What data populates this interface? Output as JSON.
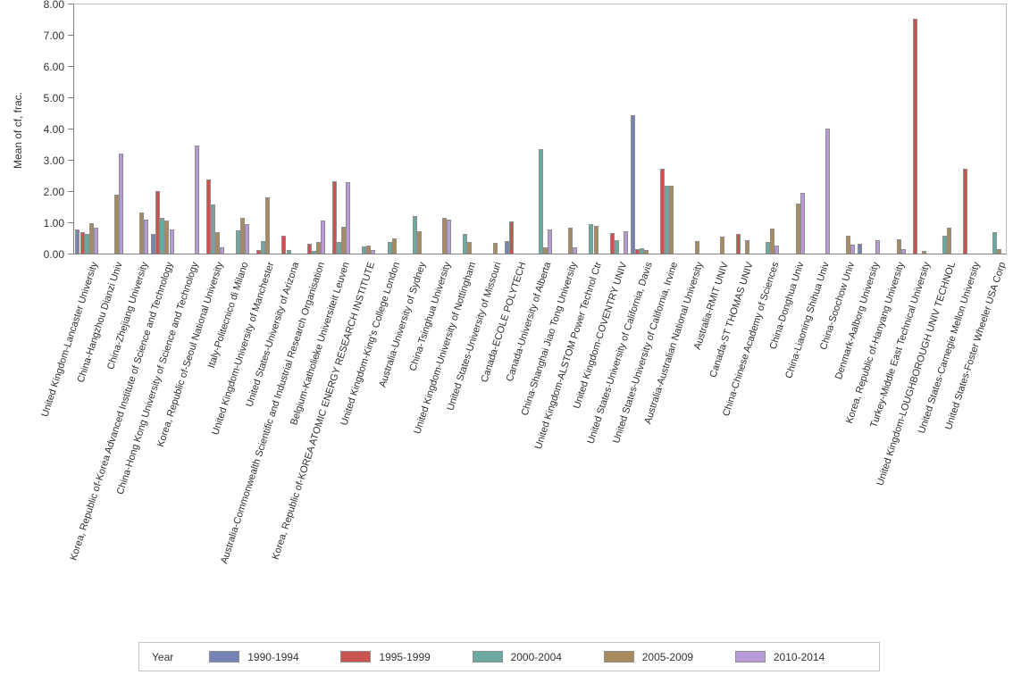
{
  "chart_data": {
    "type": "bar",
    "title": "",
    "ylabel": "Mean of cf, frac.",
    "xlabel": "",
    "ylim": [
      0,
      8
    ],
    "ytick_labels": [
      "0.00",
      "1.00",
      "2.00",
      "3.00",
      "4.00",
      "5.00",
      "6.00",
      "7.00",
      "8.00"
    ],
    "grid": false,
    "legend_position": "bottom",
    "legend_title": "Year",
    "categories": [
      "United Kingdom-Lancaster University",
      "China-Hangzhou Dianzi Univ",
      "China-Zhejiang University",
      "Korea, Republic of-Korea Advanced Institute of Science and Technology",
      "China-Hong Kong University of Science and Technology",
      "Korea, Republic of-Seoul National University",
      "Italy-Politecnico di Milano",
      "United Kingdom-University of Manchester",
      "United States-University of Arizona",
      "Australia-Commonwealth Scientific and Industrial Research Organisation",
      "Belgium-Katholieke Universiteit Leuven",
      "Korea, Republic of-KOREA ATOMIC ENERGY RESEARCH INSTITUTE",
      "United Kingdom-King's College London",
      "Australia-University of Sydney",
      "China-Tsinghua University",
      "United Kingdom-University of Nottingham",
      "United States-University of Missouri",
      "Canada-ECOLE POLYTECH",
      "Canada-University of Alberta",
      "China-Shanghai Jiao Tong University",
      "United Kingdom-ALSTOM Power Technol Ctr",
      "United Kingdom-COVENTRY UNIV",
      "United States-University of California, Davis",
      "United States-University of California, Irvine",
      "Australia-Australian National University",
      "Australia-RMIT UNIV",
      "Canada-ST THOMAS UNIV",
      "China-Chinese Academy of Sciences",
      "China-Donghua Univ",
      "China-Liaoning Shihua Univ",
      "China-Soochow Univ",
      "Denmark-Aalborg University",
      "Korea, Republic of-Hanyang University",
      "Turkey-Middle East Technical University",
      "United Kingdom-LOUGHBOROUGH UNIV TECHNOL",
      "United States-Carnegie Mellon University",
      "United States-Foster Wheeler USA Corp"
    ],
    "series": [
      {
        "name": "1990-1994",
        "color": "#7583b5",
        "values": [
          0.76,
          null,
          null,
          0.63,
          null,
          null,
          null,
          null,
          null,
          null,
          null,
          null,
          null,
          null,
          null,
          null,
          null,
          0.4,
          null,
          null,
          null,
          null,
          4.44,
          null,
          null,
          null,
          null,
          null,
          null,
          null,
          null,
          0.31,
          null,
          null,
          null,
          null,
          null
        ]
      },
      {
        "name": "1995-1999",
        "color": "#c9534f",
        "values": [
          0.7,
          null,
          null,
          2.0,
          null,
          2.38,
          null,
          0.12,
          0.56,
          0.32,
          2.31,
          null,
          null,
          null,
          null,
          null,
          null,
          1.04,
          null,
          null,
          null,
          0.66,
          0.13,
          2.71,
          null,
          null,
          0.62,
          null,
          null,
          null,
          null,
          null,
          null,
          7.52,
          null,
          2.72,
          null
        ]
      },
      {
        "name": "2000-2004",
        "color": "#6ca9a1",
        "values": [
          0.63,
          null,
          null,
          1.13,
          null,
          1.57,
          0.74,
          0.39,
          0.12,
          0.1,
          0.37,
          0.24,
          0.38,
          1.21,
          null,
          0.64,
          null,
          null,
          3.35,
          null,
          0.93,
          0.44,
          0.17,
          2.18,
          null,
          null,
          null,
          0.37,
          null,
          null,
          null,
          null,
          null,
          null,
          0.56,
          null,
          0.68
        ]
      },
      {
        "name": "2005-2009",
        "color": "#a98a5f",
        "values": [
          0.97,
          1.9,
          1.31,
          1.05,
          null,
          0.69,
          1.15,
          1.79,
          null,
          0.36,
          0.87,
          0.27,
          0.49,
          0.72,
          1.13,
          0.38,
          0.33,
          null,
          0.21,
          0.83,
          0.89,
          null,
          0.11,
          2.17,
          0.39,
          0.53,
          0.44,
          0.79,
          1.6,
          null,
          0.57,
          null,
          0.45,
          0.1,
          0.82,
          null,
          0.15
        ]
      },
      {
        "name": "2010-2014",
        "color": "#b89ad8",
        "values": [
          0.84,
          3.21,
          1.09,
          0.77,
          3.46,
          0.21,
          0.95,
          null,
          null,
          1.07,
          2.3,
          0.12,
          null,
          null,
          1.1,
          null,
          null,
          null,
          0.77,
          0.19,
          null,
          0.72,
          null,
          null,
          null,
          null,
          null,
          0.25,
          1.93,
          3.99,
          0.28,
          0.43,
          0.14,
          null,
          null,
          null,
          null
        ]
      }
    ],
    "colors": {
      "bar_border": "#8e8e8e",
      "axis_line": "#7f7f7f",
      "frame": "#bdbdbd",
      "text": "#333333"
    }
  }
}
